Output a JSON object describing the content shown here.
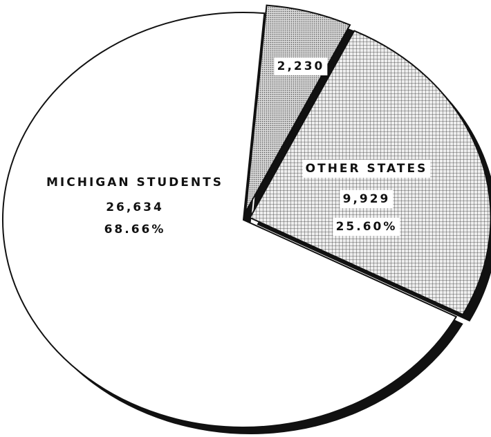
{
  "chart_data": {
    "type": "pie",
    "categories": [
      "MICHIGAN STUDENTS",
      "OTHER STATES",
      null
    ],
    "values": [
      26634,
      9929,
      2230
    ],
    "value_labels": [
      "26,634",
      "9,929",
      "2,230"
    ],
    "percent_labels": [
      "68.66%",
      "25.60%",
      null
    ]
  }
}
